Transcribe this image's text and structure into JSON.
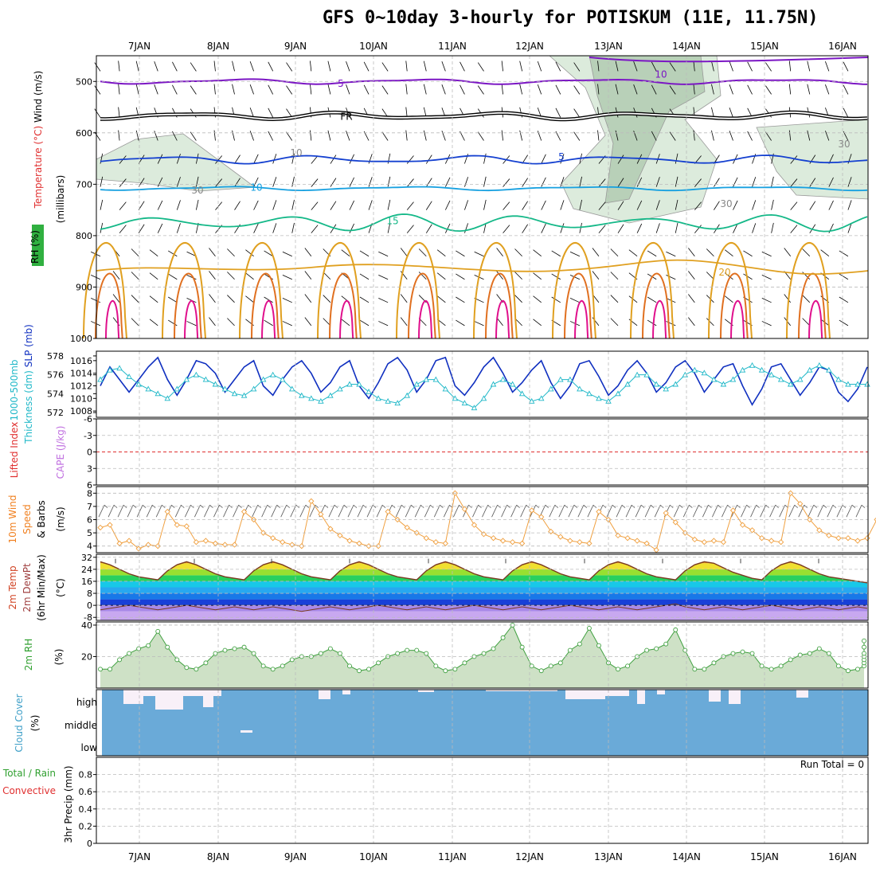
{
  "title": "GFS 0~10day 3-hourly for POTISKUM (11E, 11.75N)",
  "days": [
    "7JAN",
    "8JAN",
    "9JAN",
    "10JAN",
    "11JAN",
    "12JAN",
    "13JAN",
    "14JAN",
    "15JAN",
    "16JAN"
  ],
  "colors": {
    "purple": "#7b16c4",
    "black": "#000000",
    "blue": "#1440d0",
    "lightblue": "#16a0e0",
    "teal": "#14b888",
    "orange": "#e0a020",
    "darkorange": "#e07020",
    "magenta": "#e0108c",
    "slp": "#1030c0",
    "thick": "#20b8c8",
    "wind": "#f0a040",
    "rh": "#40a040",
    "cloud": "#6aaad8"
  },
  "chart_data": [
    {
      "type": "contour",
      "panel": "upper-air",
      "ylabel_parts": [
        "Wind (m/s)",
        "Temperature (°C)",
        "RH (%)",
        "(millibars)"
      ],
      "y_ticks": [
        500,
        600,
        700,
        800,
        900,
        1000
      ],
      "ylim": [
        450,
        1000
      ],
      "isotherm_labels": [
        {
          "label": "10",
          "level": 485
        },
        {
          "label": "5",
          "level": 503
        },
        {
          "label": "FR",
          "level": 567
        },
        {
          "label": "5",
          "level": 645
        },
        {
          "label": "10",
          "level": 705
        },
        {
          "label": "15",
          "level": 770
        },
        {
          "label": "20",
          "level": 870
        }
      ],
      "rh_labels": [
        "10",
        "30",
        "30",
        "30"
      ]
    },
    {
      "type": "line",
      "panel": "slp-thickness",
      "ylabel_parts": [
        "1000-500mb",
        "Thickness (dm)",
        "SLP (mb)"
      ],
      "left_ticks": [
        572,
        574,
        576,
        578
      ],
      "right_ticks": [
        1008,
        1010,
        1012,
        1014,
        1016
      ],
      "series": [
        {
          "name": "SLP (mb)",
          "values": [
            1012,
            1015,
            1013,
            1011,
            1013,
            1015,
            1016.5,
            1013,
            1010.5,
            1013,
            1016,
            1015.5,
            1014,
            1011,
            1013,
            1015,
            1016,
            1012,
            1010.5,
            1013,
            1015,
            1016,
            1014,
            1011,
            1012.5,
            1015,
            1016,
            1012,
            1010,
            1012.5,
            1015.5,
            1016.5,
            1014.5,
            1011,
            1013,
            1016,
            1016.5,
            1012,
            1010.5,
            1012.5,
            1015,
            1016.5,
            1014,
            1011,
            1012.5,
            1014.5,
            1016,
            1012.5,
            1010,
            1012,
            1015.5,
            1016,
            1013.5,
            1010.5,
            1012,
            1014.5,
            1016,
            1014,
            1011,
            1012.5,
            1015,
            1016,
            1014,
            1011,
            1013,
            1015,
            1015.5,
            1012,
            1009,
            1011.5,
            1015,
            1015.5,
            1013,
            1010.5,
            1012.5,
            1015,
            1014.5,
            1011,
            1009.5,
            1011.5,
            1015
          ]
        },
        {
          "name": "Thickness (dm)",
          "values": [
            575.5,
            576.5,
            576.7,
            575.8,
            575,
            574.5,
            574,
            573.5,
            574.5,
            575.5,
            576,
            575.5,
            575,
            574.5,
            574,
            573.8,
            574.5,
            575.5,
            576,
            575.5,
            574.5,
            573.8,
            573.5,
            573.2,
            573.8,
            574.5,
            575,
            575,
            574.2,
            573.5,
            573.2,
            573,
            573.8,
            575,
            575.5,
            575.5,
            574.5,
            573.5,
            573,
            572.5,
            573.5,
            575,
            575.5,
            575,
            574,
            573.2,
            573.5,
            574.5,
            575.5,
            575.5,
            574.5,
            574,
            573.5,
            573.2,
            574,
            575,
            576,
            576,
            575,
            574.5,
            575,
            576,
            576.5,
            576.2,
            575.5,
            575,
            575.5,
            576.5,
            577,
            576.5,
            576,
            575.5,
            575,
            575.5,
            576.5,
            577,
            576.5,
            575.5,
            575,
            575,
            575
          ]
        }
      ]
    },
    {
      "type": "line",
      "panel": "cape-lifted-index",
      "ylabel_parts": [
        "Lifted Index",
        "CAPE (J/kg)"
      ],
      "y_ticks": [
        -6,
        -3,
        0,
        3,
        6
      ],
      "series": [
        {
          "name": "Lifted Index",
          "values": []
        }
      ]
    },
    {
      "type": "line",
      "panel": "10m-wind",
      "ylabel_parts": [
        "10m Wind",
        "Speed",
        "& Barbs",
        "(m/s)"
      ],
      "y_ticks": [
        4,
        5,
        6,
        7,
        8
      ],
      "ylim": [
        3.5,
        8.5
      ],
      "series": [
        {
          "name": "10m Wind Speed",
          "values": [
            5.4,
            5.6,
            4.2,
            4.4,
            3.8,
            4.1,
            4.0,
            6.6,
            5.6,
            5.5,
            4.3,
            4.4,
            4.2,
            4.1,
            4.1,
            6.6,
            6.0,
            5.0,
            4.6,
            4.3,
            4.1,
            4.0,
            7.4,
            6.4,
            5.3,
            4.8,
            4.4,
            4.2,
            4.0,
            4.0,
            6.6,
            6.0,
            5.4,
            5.0,
            4.6,
            4.3,
            4.2,
            8.0,
            6.8,
            5.6,
            4.9,
            4.6,
            4.4,
            4.3,
            4.2,
            6.7,
            6.2,
            5.1,
            4.7,
            4.4,
            4.3,
            4.2,
            6.6,
            6.0,
            4.8,
            4.6,
            4.4,
            4.2,
            3.7,
            6.5,
            5.8,
            5.0,
            4.5,
            4.3,
            4.4,
            4.3,
            6.7,
            5.6,
            5.2,
            4.6,
            4.4,
            4.3,
            8.0,
            7.2,
            6.0,
            5.2,
            4.8,
            4.6,
            4.6,
            4.4,
            4.6,
            6.0
          ]
        }
      ]
    },
    {
      "type": "area",
      "panel": "2m-temp-dewpoint",
      "ylabel_parts": [
        "2m Temp",
        "2m DewPt",
        "(6hr Min/Max)",
        "(°C)"
      ],
      "y_ticks": [
        -8,
        0,
        8,
        16,
        24,
        32
      ],
      "ylim": [
        -10,
        34
      ],
      "series": [
        {
          "name": "2m Temp",
          "values": [
            29,
            27,
            24,
            21,
            19,
            18,
            17,
            23,
            27,
            29,
            27,
            24,
            21,
            19,
            18,
            17,
            23,
            27,
            29,
            27,
            24,
            21,
            19,
            18,
            17,
            23,
            27,
            29,
            27,
            24,
            21,
            19,
            18,
            17,
            23,
            27,
            29,
            27,
            24,
            21,
            19,
            18,
            17,
            23,
            27,
            29,
            27,
            24,
            21,
            19,
            18,
            17,
            23,
            27,
            29,
            27,
            24,
            21,
            19,
            18,
            17,
            23,
            27,
            29,
            28,
            25,
            22,
            20,
            18,
            17,
            23,
            27,
            29,
            27,
            24,
            21,
            19,
            18,
            17,
            16,
            15
          ]
        },
        {
          "name": "2m DewPt",
          "values": [
            -3,
            -2,
            -1,
            0,
            -1,
            -2,
            -3,
            -2,
            -1,
            0,
            -1,
            -2,
            -3,
            -2,
            -1,
            -2,
            -3,
            -2,
            -1,
            -2,
            -3,
            -4,
            -3,
            -2,
            -1,
            -2,
            -3,
            -2,
            -1,
            0,
            -1,
            -2,
            -3,
            -2,
            -1,
            -2,
            -3,
            -2,
            -1,
            0,
            -1,
            -2,
            -3,
            -2,
            -1,
            -2,
            -3,
            -2,
            -1,
            0,
            -1,
            -2,
            -3,
            -2,
            -1,
            -2,
            -3,
            -2,
            -1,
            0,
            1,
            -1,
            -2,
            -3,
            -2,
            -1,
            -2,
            -3,
            -2,
            -1,
            0,
            -1,
            -2,
            -3,
            -2,
            -1,
            -2,
            -3,
            -2,
            -1,
            -2
          ]
        }
      ]
    },
    {
      "type": "area",
      "panel": "2m-rh",
      "ylabel_parts": [
        "2m RH",
        "(%)"
      ],
      "y_ticks": [
        20,
        40
      ],
      "ylim": [
        0,
        42
      ],
      "series": [
        {
          "name": "2m RH",
          "values": [
            12,
            12,
            18,
            22,
            25,
            27,
            36,
            26,
            18,
            13,
            12,
            16,
            22,
            24,
            25,
            26,
            22,
            14,
            12,
            14,
            18,
            20,
            20,
            22,
            25,
            22,
            14,
            11,
            12,
            16,
            20,
            22,
            24,
            24,
            22,
            14,
            11,
            12,
            16,
            20,
            22,
            25,
            32,
            40,
            26,
            14,
            11,
            14,
            16,
            24,
            28,
            38,
            27,
            16,
            12,
            14,
            20,
            24,
            25,
            28,
            37,
            24,
            12,
            12,
            16,
            20,
            22,
            23,
            22,
            14,
            12,
            14,
            18,
            21,
            22,
            25,
            22,
            14,
            11,
            12,
            14,
            16,
            18,
            20,
            22,
            26,
            30
          ]
        }
      ]
    },
    {
      "type": "bar",
      "panel": "cloud-cover",
      "ylabel_parts": [
        "Cloud Cover",
        "(%)"
      ],
      "y_ticks": [
        "high",
        "middle",
        "low"
      ]
    },
    {
      "type": "bar",
      "panel": "precip",
      "ylabel_parts": [
        "Total / Rain",
        "Convective",
        "3hr Precip (mm)"
      ],
      "y_ticks": [
        0,
        0.2,
        0.4,
        0.6,
        0.8
      ],
      "ylim": [
        0,
        1
      ],
      "annotation": "Run Total = 0",
      "series": [
        {
          "name": "3hr Precip",
          "values": []
        }
      ]
    }
  ]
}
